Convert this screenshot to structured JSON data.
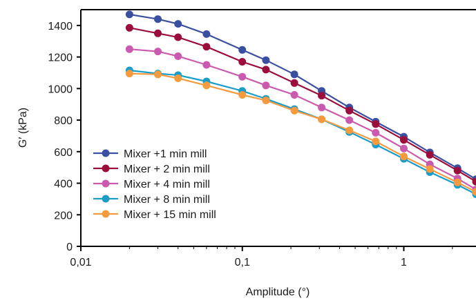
{
  "chart_data": {
    "type": "line",
    "title": "",
    "xlabel": "Amplitude (°)",
    "ylabel": "G′ (kPa)",
    "x_scale": "log",
    "xlim": [
      0.01,
      2.8
    ],
    "ylim": [
      0,
      1500
    ],
    "x_ticks": [
      0.01,
      0.1,
      1
    ],
    "x_tick_labels": [
      "0,01",
      "0,1",
      "1"
    ],
    "y_ticks": [
      0,
      200,
      400,
      600,
      800,
      1000,
      1200,
      1400
    ],
    "y_tick_labels": [
      "0",
      "200",
      "400",
      "600",
      "800",
      "1000",
      "1200",
      "1400"
    ],
    "grid": false,
    "legend_position": "lower-left",
    "x": [
      0.02,
      0.03,
      0.04,
      0.06,
      0.1,
      0.14,
      0.21,
      0.31,
      0.46,
      0.67,
      1.0,
      1.45,
      2.15,
      2.8
    ],
    "series": [
      {
        "name": "Mixer +1 min mill",
        "color": "#3b4fa0",
        "values": [
          1470,
          1440,
          1410,
          1345,
          1245,
          1180,
          1090,
          985,
          880,
          790,
          695,
          595,
          495,
          425
        ]
      },
      {
        "name": "Mixer + 2 min mill",
        "color": "#9b0d3b",
        "values": [
          1385,
          1350,
          1325,
          1265,
          1170,
          1120,
          1035,
          955,
          860,
          775,
          675,
          580,
          480,
          410
        ]
      },
      {
        "name": "Mixer + 4 min mill",
        "color": "#c95aad",
        "values": [
          1250,
          1235,
          1205,
          1150,
          1075,
          1020,
          960,
          880,
          800,
          720,
          620,
          520,
          430,
          360
        ]
      },
      {
        "name": "Mixer + 8 min mill",
        "color": "#1a9dc9",
        "values": [
          1115,
          1095,
          1085,
          1045,
          985,
          935,
          870,
          805,
          725,
          645,
          555,
          470,
          390,
          330
        ]
      },
      {
        "name": "Mixer + 15 min mill",
        "color": "#f49a3f",
        "values": [
          1095,
          1090,
          1065,
          1020,
          960,
          925,
          860,
          805,
          735,
          665,
          570,
          490,
          405,
          345
        ]
      }
    ]
  }
}
